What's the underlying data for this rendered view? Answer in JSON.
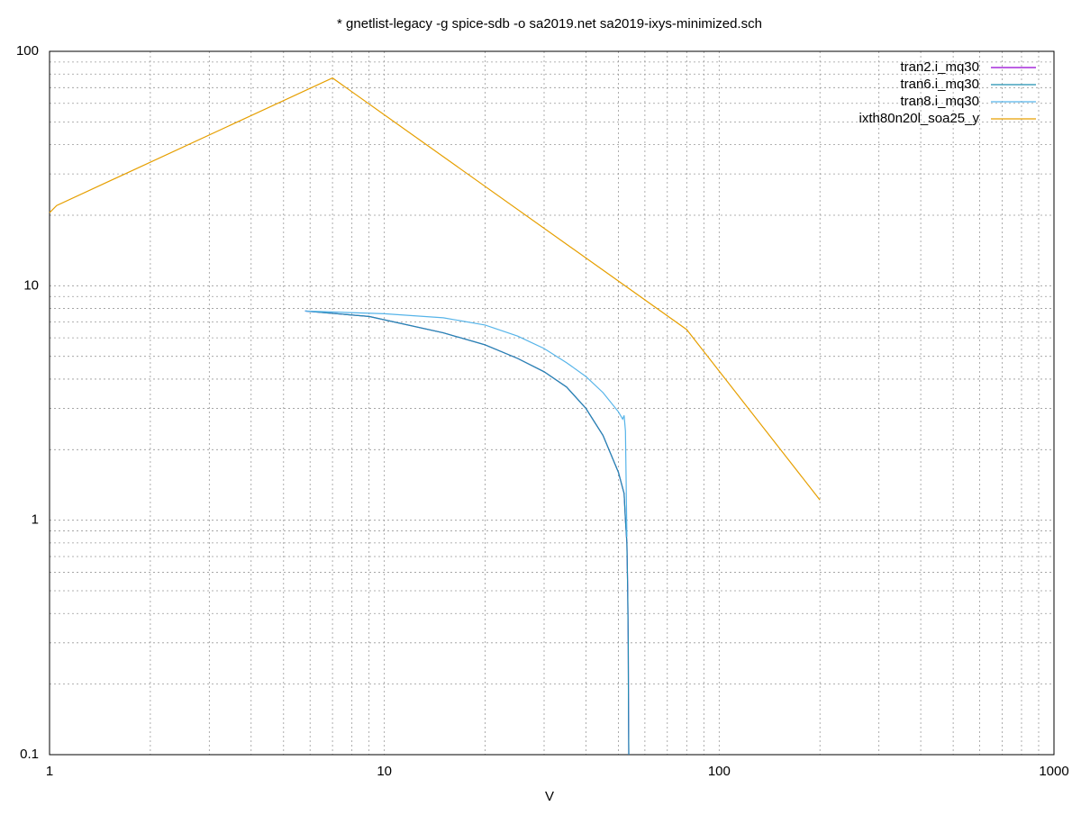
{
  "chart_data": {
    "type": "line",
    "title": "* gnetlist-legacy -g spice-sdb -o sa2019.net sa2019-ixys-minimized.sch",
    "xlabel": "V",
    "xscale": "log",
    "yscale": "log",
    "xlim": [
      1,
      1000
    ],
    "ylim": [
      0.1,
      100
    ],
    "xticks": [
      1,
      10,
      100,
      1000
    ],
    "yticks": [
      0.1,
      1,
      10,
      100
    ],
    "xminorticks": [
      2,
      3,
      4,
      5,
      6,
      7,
      8,
      9,
      20,
      30,
      40,
      50,
      60,
      70,
      80,
      90,
      200,
      300,
      400,
      500,
      600,
      700,
      800,
      900
    ],
    "yminorticks": [
      0.2,
      0.3,
      0.4,
      0.5,
      0.6,
      0.7,
      0.8,
      0.9,
      2,
      3,
      4,
      5,
      6,
      7,
      8,
      9,
      20,
      30,
      40,
      50,
      60,
      70,
      80,
      90
    ],
    "grid": true,
    "legend": "top-right",
    "series": [
      {
        "name": "tran2.i_mq30",
        "color": "#9400d3",
        "x": [
          5.8,
          9,
          15,
          20,
          25,
          30,
          35,
          40,
          45,
          50,
          52,
          52.5,
          53,
          53.3,
          53.5,
          53.6,
          53.7
        ],
        "values": [
          7.8,
          7.4,
          6.3,
          5.6,
          4.9,
          4.3,
          3.7,
          3.0,
          2.3,
          1.6,
          1.3,
          1.0,
          0.8,
          0.5,
          0.3,
          0.15,
          0.1
        ]
      },
      {
        "name": "tran6.i_mq30",
        "color": "#1f8fb0",
        "x": [
          5.8,
          9,
          15,
          20,
          25,
          30,
          35,
          40,
          45,
          50,
          52,
          52.5,
          53,
          53.3,
          53.5,
          53.6,
          53.7
        ],
        "values": [
          7.8,
          7.4,
          6.3,
          5.6,
          4.9,
          4.3,
          3.7,
          3.0,
          2.3,
          1.6,
          1.3,
          1.0,
          0.8,
          0.5,
          0.3,
          0.15,
          0.1
        ]
      },
      {
        "name": "tran8.i_mq30",
        "color": "#56b4e9",
        "x": [
          5.8,
          10,
          15,
          20,
          25,
          30,
          35,
          40,
          45,
          50,
          51.5,
          52,
          52.5,
          53
        ],
        "values": [
          7.8,
          7.6,
          7.3,
          6.8,
          6.1,
          5.4,
          4.7,
          4.1,
          3.5,
          2.9,
          2.7,
          2.8,
          2.4,
          0.85
        ]
      },
      {
        "name": "ixth80n20l_soa25_y",
        "color": "#e69f00",
        "x": [
          1,
          1.05,
          7,
          80,
          200
        ],
        "values": [
          20.5,
          22,
          77,
          6.5,
          1.22
        ]
      }
    ]
  }
}
